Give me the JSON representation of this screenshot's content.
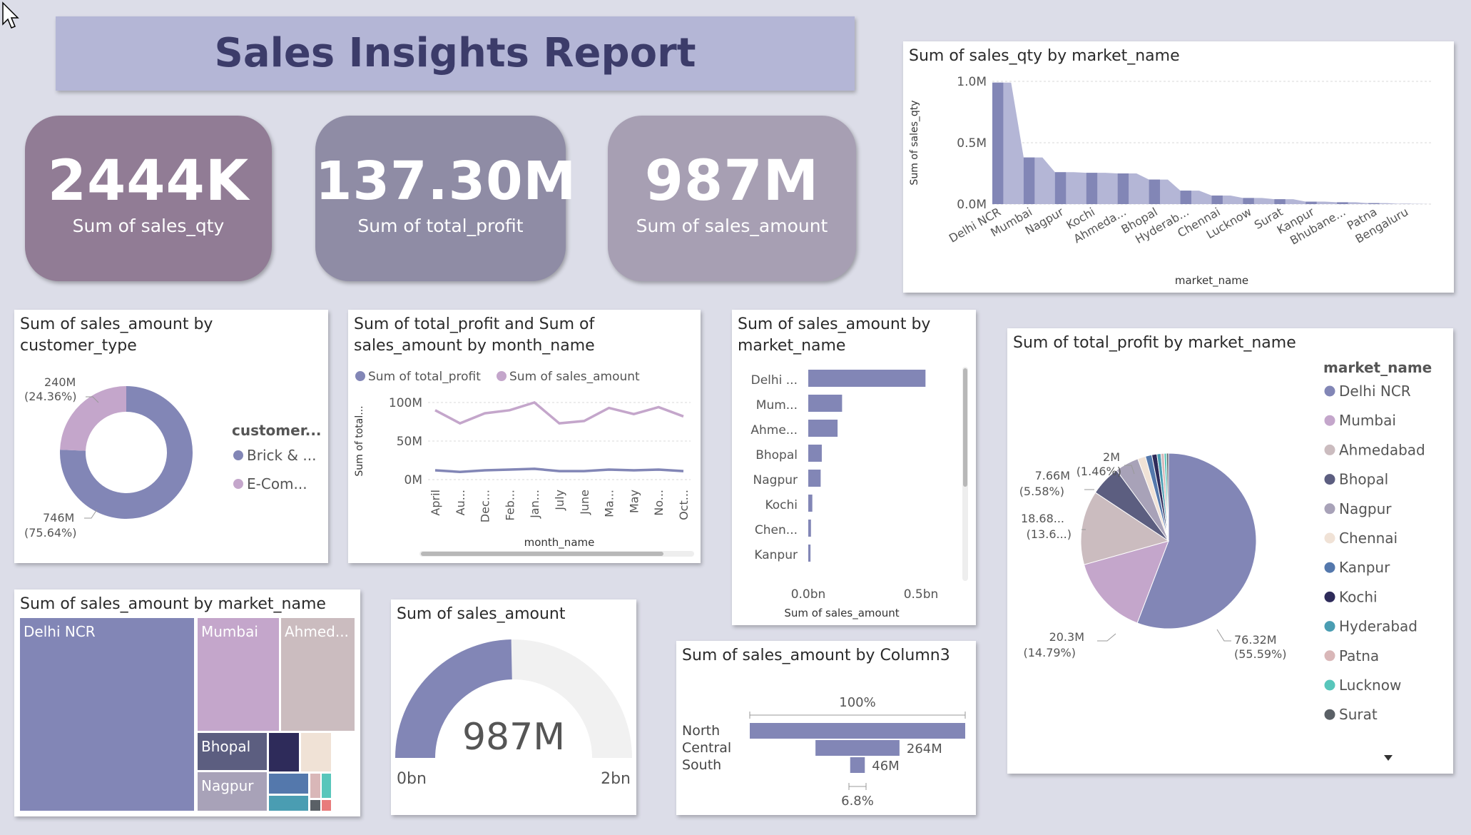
{
  "report_title": "Sales Insights Report",
  "kpis": [
    {
      "value": "2444K",
      "label": "Sum of sales_qty"
    },
    {
      "value": "137.30M",
      "label": "Sum of total_profit"
    },
    {
      "value": "987M",
      "label": "Sum of sales_amount"
    }
  ],
  "colors": {
    "primary": "#8286b6",
    "secondary": "#c4a6cb",
    "title_bar": "#b4b6d6",
    "title_text": "#3c3c6a",
    "kpi1": "#917c95",
    "kpi2": "#8f8ca5",
    "kpi3": "#a79fb3"
  },
  "chart_data": [
    {
      "id": "qty_by_market",
      "type": "area",
      "title": "Sum of sales_qty by market_name",
      "xlabel": "market_name",
      "ylabel": "Sum of sales_qty",
      "yticks": [
        "1.0M",
        "0.5M",
        "0.0M"
      ],
      "ylim": [
        0,
        1000000
      ],
      "x_labels": [
        "Delhi NCR",
        "Mumbai",
        "Nagpur",
        "Kochi",
        "Ahmeda...",
        "Bhopal",
        "Hyderab...",
        "Chennai",
        "Lucknow",
        "Surat",
        "Kanpur",
        "Bhubane...",
        "Patna",
        "Bengaluru"
      ],
      "categories": [
        "Delhi NCR",
        "Mumbai",
        "Nagpur",
        "Kochi",
        "Ahmedabad",
        "Bhopal",
        "Hyderabad",
        "Chennai",
        "Lucknow",
        "Surat",
        "Kanpur",
        "Bhubaneshwar",
        "Patna",
        "Bengaluru"
      ],
      "values": [
        990000,
        380000,
        260000,
        255000,
        250000,
        200000,
        110000,
        70000,
        50000,
        40000,
        20000,
        15000,
        8000,
        2000
      ]
    },
    {
      "id": "amount_by_customer_type",
      "type": "pie",
      "title": "Sum of sales_amount by customer_type",
      "legend_title": "customer...",
      "legend": [
        "Brick & ...",
        "E-Com..."
      ],
      "slices": [
        {
          "name": "Brick & Mortar",
          "value": 746,
          "label": "746M",
          "pct": "(75.64%)"
        },
        {
          "name": "E-Commerce",
          "value": 240,
          "label": "240M",
          "pct": "(24.36%)"
        }
      ]
    },
    {
      "id": "profit_amount_by_month",
      "type": "line",
      "title": "Sum of total_profit and Sum of sales_amount by month_name",
      "xlabel": "month_name",
      "ylabel": "Sum of total...",
      "yticks": [
        "100M",
        "50M",
        "0M"
      ],
      "ylim": [
        0,
        100
      ],
      "categories": [
        "April",
        "Au...",
        "Dec...",
        "Feb...",
        "Jan...",
        "July",
        "June",
        "Ma...",
        "May",
        "No...",
        "Oct..."
      ],
      "series": [
        {
          "name": "Sum of total_profit",
          "values": [
            12,
            10,
            12,
            13,
            14,
            11,
            11,
            13,
            12,
            13,
            11
          ]
        },
        {
          "name": "Sum of sales_amount",
          "values": [
            90,
            73,
            86,
            90,
            100,
            73,
            76,
            93,
            85,
            94,
            82
          ]
        }
      ]
    },
    {
      "id": "amount_by_market_bar",
      "type": "bar",
      "title": "Sum of sales_amount by market_name",
      "xlabel": "Sum of sales_amount",
      "xticks": [
        "0.0bn",
        "0.5bn"
      ],
      "xlim": [
        0,
        0.5
      ],
      "categories": [
        "Delhi ...",
        "Mum...",
        "Ahme...",
        "Bhopal",
        "Nagpur",
        "Kochi",
        "Chen...",
        "Kanpur"
      ],
      "values": [
        0.52,
        0.15,
        0.13,
        0.06,
        0.055,
        0.018,
        0.012,
        0.01
      ]
    },
    {
      "id": "profit_by_market_pie",
      "type": "pie",
      "title": "Sum of total_profit by market_name",
      "legend_title": "market_name",
      "legend": [
        "Delhi NCR",
        "Mumbai",
        "Ahmedabad",
        "Bhopal",
        "Nagpur",
        "Chennai",
        "Kanpur",
        "Kochi",
        "Hyderabad",
        "Patna",
        "Lucknow",
        "Surat"
      ],
      "slices": [
        {
          "name": "Delhi NCR",
          "value": 76.32,
          "label": "76.32M",
          "pct": "(55.59%)"
        },
        {
          "name": "Mumbai",
          "value": 20.3,
          "label": "20.3M",
          "pct": "(14.79%)"
        },
        {
          "name": "Ahmedabad",
          "value": 18.68,
          "label": "18.68...",
          "pct": "(13.6...)"
        },
        {
          "name": "Bhopal",
          "value": 7.66,
          "label": "7.66M",
          "pct": "(5.58%)"
        },
        {
          "name": "Nagpur",
          "value": 6.0,
          "label": "",
          "pct": ""
        },
        {
          "name": "Chennai",
          "value": 2.0,
          "label": "2M",
          "pct": "(1.46%)"
        },
        {
          "name": "Kanpur",
          "value": 1.6,
          "label": "",
          "pct": ""
        },
        {
          "name": "Kochi",
          "value": 1.3,
          "label": "",
          "pct": ""
        },
        {
          "name": "Hyderabad",
          "value": 1.0,
          "label": "",
          "pct": ""
        },
        {
          "name": "Patna",
          "value": 0.8,
          "label": "",
          "pct": ""
        },
        {
          "name": "Lucknow",
          "value": 0.6,
          "label": "",
          "pct": ""
        },
        {
          "name": "Surat",
          "value": 0.5,
          "label": "",
          "pct": ""
        }
      ]
    },
    {
      "id": "amount_treemap",
      "type": "heatmap",
      "title": "Sum of sales_amount by market_name",
      "tiles": [
        {
          "name": "Delhi NCR",
          "label": "Delhi NCR",
          "value": 520
        },
        {
          "name": "Mumbai",
          "label": "Mumbai",
          "value": 150
        },
        {
          "name": "Ahmedabad",
          "label": "Ahmed...",
          "value": 130
        },
        {
          "name": "Bhopal",
          "label": "Bhopal",
          "value": 60
        },
        {
          "name": "Nagpur",
          "label": "Nagpur",
          "value": 55
        }
      ]
    },
    {
      "id": "amount_gauge",
      "type": "pie",
      "title": "Sum of sales_amount",
      "value_label": "987M",
      "min_label": "0bn",
      "max_label": "2bn",
      "value": 0.987,
      "min": 0,
      "max": 2
    },
    {
      "id": "amount_by_zone_funnel",
      "type": "bar",
      "title": "Sum of sales_amount by Column3",
      "top_label": "100%",
      "bottom_label": "6.8%",
      "categories": [
        "North",
        "Central",
        "South"
      ],
      "values": [
        677,
        264,
        46
      ],
      "value_labels": [
        "",
        "264M",
        "46M"
      ]
    }
  ]
}
